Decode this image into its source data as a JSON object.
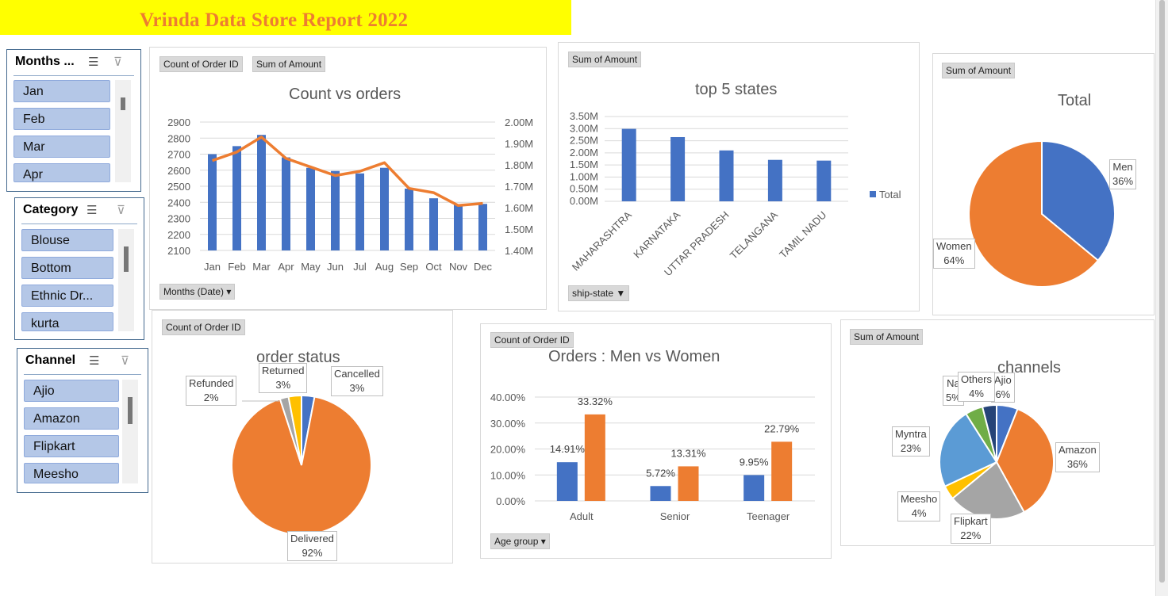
{
  "report_title": "Vrinda Data Store Report 2022",
  "slicers": {
    "months": {
      "header": "Months ...",
      "items": [
        "Jan",
        "Feb",
        "Mar",
        "Apr"
      ]
    },
    "category": {
      "header": "Category",
      "items": [
        "Blouse",
        "Bottom",
        "Ethnic Dr...",
        "kurta"
      ]
    },
    "channel": {
      "header": "Channel",
      "items": [
        "Ajio",
        "Amazon",
        "Flipkart",
        "Meesho"
      ]
    }
  },
  "icons": {
    "multiselect": "multi-select-icon",
    "clear_filter": "clear-filter-icon",
    "dropdown": "dropdown-arrow-icon",
    "filter": "filter-icon"
  },
  "colors": {
    "blue": "#4472c4",
    "orange": "#ed7d31",
    "gray": "#a5a5a5",
    "yellow": "#ffc000",
    "light_blue": "#5b9bd5",
    "green": "#70ad47",
    "dark_blue": "#264478",
    "title_bg": "#ffff00"
  },
  "chart_data": [
    {
      "id": "count_vs_orders",
      "type": "bar+line",
      "title": "Count vs orders",
      "buttons": [
        "Count of Order ID",
        "Sum of Amount"
      ],
      "axis_button": "Months (Date)",
      "categories": [
        "Jan",
        "Feb",
        "Mar",
        "Apr",
        "May",
        "Jun",
        "Jul",
        "Aug",
        "Sep",
        "Oct",
        "Nov",
        "Dec"
      ],
      "bar_series": {
        "name": "Count of Order ID",
        "values": [
          2700,
          2750,
          2820,
          2680,
          2615,
          2595,
          2580,
          2615,
          2485,
          2425,
          2385,
          2390
        ]
      },
      "line_series": {
        "name": "Sum of Amount",
        "values": [
          1.82,
          1.86,
          1.93,
          1.83,
          1.79,
          1.75,
          1.77,
          1.81,
          1.69,
          1.67,
          1.61,
          1.62
        ]
      },
      "y_left": {
        "min": 2100,
        "max": 2900,
        "ticks": [
          "2100",
          "2200",
          "2300",
          "2400",
          "2500",
          "2600",
          "2700",
          "2800",
          "2900"
        ]
      },
      "y_right": {
        "min": 1.4,
        "max": 2.0,
        "ticks": [
          "1.40M",
          "1.50M",
          "1.60M",
          "1.70M",
          "1.80M",
          "1.90M",
          "2.00M"
        ]
      }
    },
    {
      "id": "top_5_states",
      "type": "bar",
      "title": "top 5 states",
      "buttons": [
        "Sum of Amount"
      ],
      "axis_button": "ship-state",
      "categories": [
        "MAHARASHTRA",
        "KARNATAKA",
        "UTTAR PRADESH",
        "TELANGANA",
        "TAMIL NADU"
      ],
      "values": [
        2.99,
        2.65,
        2.1,
        1.71,
        1.68
      ],
      "y_ticks": [
        "0.00M",
        "0.50M",
        "1.00M",
        "1.50M",
        "2.00M",
        "2.50M",
        "3.00M",
        "3.50M"
      ],
      "ylim": [
        0,
        3.5
      ],
      "legend": [
        "Total"
      ]
    },
    {
      "id": "total_gender",
      "type": "pie",
      "title": "Total",
      "buttons": [
        "Sum of Amount"
      ],
      "slices": [
        {
          "label": "Men",
          "value": 36,
          "text": "36%"
        },
        {
          "label": "Women",
          "value": 64,
          "text": "64%"
        }
      ]
    },
    {
      "id": "order_status",
      "type": "pie",
      "title": "order status",
      "buttons": [
        "Count of Order ID"
      ],
      "slices": [
        {
          "label": "Cancelled",
          "value": 3,
          "text": "3%"
        },
        {
          "label": "Delivered",
          "value": 92,
          "text": "92%"
        },
        {
          "label": "Refunded",
          "value": 2,
          "text": "2%"
        },
        {
          "label": "Returned",
          "value": 3,
          "text": "3%"
        }
      ]
    },
    {
      "id": "men_vs_women",
      "type": "bar",
      "title": "Orders : Men vs Women",
      "buttons": [
        "Count of Order ID"
      ],
      "axis_button": "Age group",
      "categories": [
        "Adult",
        "Senior",
        "Teenager"
      ],
      "series": [
        {
          "values": [
            14.91,
            5.72,
            9.95
          ],
          "labels": [
            "14.91%",
            "5.72%",
            "9.95%"
          ]
        },
        {
          "values": [
            33.32,
            13.31,
            22.79
          ],
          "labels": [
            "33.32%",
            "13.31%",
            "22.79%"
          ]
        }
      ],
      "y_ticks": [
        "0.00%",
        "10.00%",
        "20.00%",
        "30.00%",
        "40.00%"
      ],
      "ylim": [
        0,
        40
      ]
    },
    {
      "id": "channels",
      "type": "pie",
      "title": "channels",
      "buttons": [
        "Sum of Amount"
      ],
      "slices": [
        {
          "label": "Ajio",
          "value": 6,
          "text": "6%"
        },
        {
          "label": "Amazon",
          "value": 36,
          "text": "36%"
        },
        {
          "label": "Flipkart",
          "value": 22,
          "text": "22%"
        },
        {
          "label": "Meesho",
          "value": 4,
          "text": "4%"
        },
        {
          "label": "Myntra",
          "value": 23,
          "text": "23%"
        },
        {
          "label": "Na",
          "value": 5,
          "text": "5%"
        },
        {
          "label": "Others",
          "value": 4,
          "text": "4%"
        }
      ]
    }
  ]
}
